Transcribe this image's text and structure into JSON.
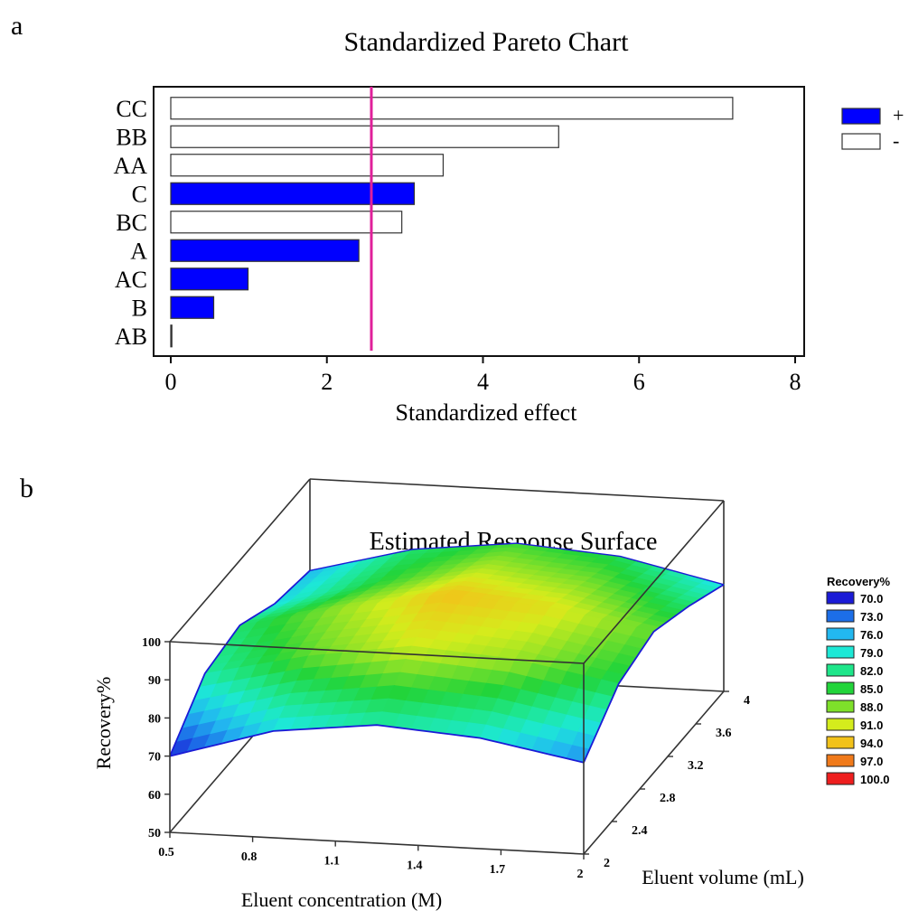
{
  "panel_a": {
    "label": "a",
    "chart_data": {
      "type": "bar",
      "title": "Standardized Pareto Chart",
      "xlabel": "Standardized effect",
      "ylabel": "",
      "xlim": [
        0,
        8
      ],
      "xticks": [
        "0",
        "2",
        "4",
        "6",
        "8"
      ],
      "categories": [
        "CC",
        "BB",
        "AA",
        "C",
        "BC",
        "A",
        "AC",
        "B",
        "AB"
      ],
      "values": [
        7.2,
        4.97,
        3.49,
        3.12,
        2.96,
        2.41,
        0.99,
        0.55,
        0.01
      ],
      "signs": [
        "-",
        "-",
        "-",
        "+",
        "-",
        "+",
        "+",
        "+",
        "-"
      ],
      "reference_line": 2.57,
      "reference_color": "#e0209a",
      "positive_color": "#0000ff",
      "negative_color": "#ffffff",
      "legend": [
        {
          "label": "+",
          "sign": "+"
        },
        {
          "label": "-",
          "sign": "-"
        }
      ],
      "legend_position": "right"
    }
  },
  "panel_b": {
    "label": "b",
    "chart_data": {
      "type": "surface",
      "title": "Estimated Response Surface",
      "xlabel": "Eluent concentration (M)",
      "ylabel": "Eluent volume (mL)",
      "zlabel": "Recovery%",
      "x_ticks": [
        "0.5",
        "0.8",
        "1.1",
        "1.4",
        "1.7",
        "2"
      ],
      "y_ticks": [
        "2",
        "2.4",
        "2.8",
        "3.2",
        "3.6",
        "4"
      ],
      "z_ticks": [
        "50",
        "60",
        "70",
        "80",
        "90",
        "100"
      ],
      "xlim": [
        0.5,
        2
      ],
      "ylim": [
        2,
        4
      ],
      "zlim": [
        50,
        100
      ],
      "grid": [
        [
          70,
          81,
          83,
          78,
          76
        ],
        [
          78,
          87,
          89,
          85,
          83
        ],
        [
          81,
          91,
          94,
          90,
          86
        ],
        [
          79,
          89,
          92,
          88,
          84
        ],
        [
          74,
          84,
          87,
          83,
          78
        ]
      ],
      "legend_title": "Recovery%",
      "legend": [
        {
          "label": "70.0",
          "color": "#1b1bd6"
        },
        {
          "label": "73.0",
          "color": "#1c6ee8"
        },
        {
          "label": "76.0",
          "color": "#22b8f0"
        },
        {
          "label": "79.0",
          "color": "#1de8d6"
        },
        {
          "label": "82.0",
          "color": "#1ee68a"
        },
        {
          "label": "85.0",
          "color": "#22d43a"
        },
        {
          "label": "88.0",
          "color": "#7ee02a"
        },
        {
          "label": "91.0",
          "color": "#d4ec1c"
        },
        {
          "label": "94.0",
          "color": "#f2c21a"
        },
        {
          "label": "97.0",
          "color": "#f07a1a"
        },
        {
          "label": "100.0",
          "color": "#ee1e1e"
        }
      ],
      "legend_position": "right"
    }
  }
}
